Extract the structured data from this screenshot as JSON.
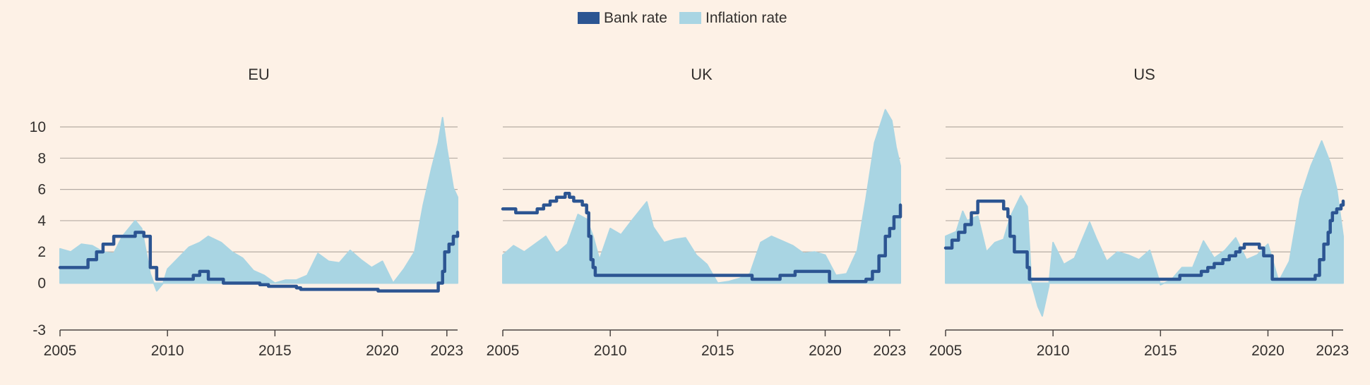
{
  "legend": {
    "items": [
      {
        "label": "Bank rate",
        "color": "#2c5592"
      },
      {
        "label": "Inflation rate",
        "color": "#a9d5e3"
      }
    ]
  },
  "colors": {
    "background": "#fdf1e6",
    "bank": "#2c5592",
    "inflation": "#a9d5e3",
    "grid": "#b5aca4",
    "axis": "#4a4542",
    "text": "#33302e"
  },
  "chart_data": [
    {
      "type": "area",
      "title": "EU",
      "xlim": [
        2005,
        2023.5
      ],
      "ylim": [
        -3,
        11
      ],
      "xticks": [
        2005,
        2010,
        2015,
        2020,
        2023
      ],
      "yticks": [
        -3,
        0,
        2,
        4,
        6,
        8,
        10
      ],
      "series": [
        {
          "name": "Inflation rate",
          "type": "area",
          "points": [
            [
              2005,
              2.2
            ],
            [
              2005.5,
              2.0
            ],
            [
              2006,
              2.5
            ],
            [
              2006.5,
              2.4
            ],
            [
              2007,
              2.0
            ],
            [
              2007.5,
              1.9
            ],
            [
              2007.9,
              3.0
            ],
            [
              2008.5,
              4.0
            ],
            [
              2008.8,
              3.5
            ],
            [
              2009.2,
              0.6
            ],
            [
              2009.5,
              -0.5
            ],
            [
              2009.8,
              0.0
            ],
            [
              2010,
              0.9
            ],
            [
              2010.5,
              1.6
            ],
            [
              2011,
              2.3
            ],
            [
              2011.5,
              2.6
            ],
            [
              2011.9,
              3.0
            ],
            [
              2012.5,
              2.6
            ],
            [
              2013,
              2.0
            ],
            [
              2013.5,
              1.6
            ],
            [
              2014,
              0.8
            ],
            [
              2014.5,
              0.5
            ],
            [
              2015,
              0.0
            ],
            [
              2015.5,
              0.2
            ],
            [
              2016,
              0.2
            ],
            [
              2016.5,
              0.5
            ],
            [
              2017,
              1.9
            ],
            [
              2017.5,
              1.4
            ],
            [
              2018,
              1.3
            ],
            [
              2018.5,
              2.1
            ],
            [
              2019,
              1.5
            ],
            [
              2019.5,
              1.0
            ],
            [
              2020,
              1.4
            ],
            [
              2020.5,
              0.0
            ],
            [
              2021,
              0.9
            ],
            [
              2021.5,
              2.0
            ],
            [
              2021.9,
              5.0
            ],
            [
              2022.3,
              7.4
            ],
            [
              2022.6,
              9.0
            ],
            [
              2022.8,
              10.6
            ],
            [
              2023,
              8.6
            ],
            [
              2023.3,
              6.1
            ],
            [
              2023.5,
              5.5
            ]
          ]
        },
        {
          "name": "Bank rate",
          "type": "step",
          "points": [
            [
              2005,
              1.0
            ],
            [
              2006,
              1.0
            ],
            [
              2006.3,
              1.5
            ],
            [
              2006.7,
              2.0
            ],
            [
              2007,
              2.5
            ],
            [
              2007.5,
              3.0
            ],
            [
              2008.5,
              3.25
            ],
            [
              2008.9,
              3.0
            ],
            [
              2009.2,
              1.0
            ],
            [
              2009.5,
              0.25
            ],
            [
              2011.2,
              0.5
            ],
            [
              2011.5,
              0.75
            ],
            [
              2011.9,
              0.25
            ],
            [
              2012.6,
              0.0
            ],
            [
              2014.3,
              -0.1
            ],
            [
              2014.7,
              -0.2
            ],
            [
              2016,
              -0.3
            ],
            [
              2016.2,
              -0.4
            ],
            [
              2019.8,
              -0.5
            ],
            [
              2022.5,
              -0.5
            ],
            [
              2022.6,
              0.0
            ],
            [
              2022.8,
              0.75
            ],
            [
              2022.9,
              2.0
            ],
            [
              2023.1,
              2.5
            ],
            [
              2023.3,
              3.0
            ],
            [
              2023.5,
              3.25
            ]
          ]
        }
      ]
    },
    {
      "type": "area",
      "title": "UK",
      "xlim": [
        2005,
        2023.5
      ],
      "ylim": [
        -3,
        11
      ],
      "xticks": [
        2005,
        2010,
        2015,
        2020,
        2023
      ],
      "yticks": [
        -3,
        0,
        2,
        4,
        6,
        8,
        10
      ],
      "series": [
        {
          "name": "Inflation rate",
          "type": "area",
          "points": [
            [
              2005,
              1.8
            ],
            [
              2005.5,
              2.4
            ],
            [
              2006,
              2.0
            ],
            [
              2006.5,
              2.5
            ],
            [
              2007,
              3.0
            ],
            [
              2007.5,
              1.9
            ],
            [
              2008,
              2.5
            ],
            [
              2008.5,
              4.4
            ],
            [
              2008.9,
              4.1
            ],
            [
              2009.2,
              3.0
            ],
            [
              2009.5,
              1.5
            ],
            [
              2010,
              3.5
            ],
            [
              2010.5,
              3.1
            ],
            [
              2011,
              4.0
            ],
            [
              2011.7,
              5.2
            ],
            [
              2012,
              3.6
            ],
            [
              2012.5,
              2.6
            ],
            [
              2013,
              2.8
            ],
            [
              2013.5,
              2.9
            ],
            [
              2014,
              1.8
            ],
            [
              2014.5,
              1.2
            ],
            [
              2015,
              0.0
            ],
            [
              2015.5,
              0.1
            ],
            [
              2016,
              0.3
            ],
            [
              2016.5,
              0.6
            ],
            [
              2017,
              2.6
            ],
            [
              2017.5,
              3.0
            ],
            [
              2018,
              2.7
            ],
            [
              2018.5,
              2.4
            ],
            [
              2019,
              1.9
            ],
            [
              2019.5,
              2.0
            ],
            [
              2020,
              1.8
            ],
            [
              2020.5,
              0.5
            ],
            [
              2021,
              0.6
            ],
            [
              2021.5,
              2.1
            ],
            [
              2021.9,
              5.4
            ],
            [
              2022.3,
              9.0
            ],
            [
              2022.8,
              11.1
            ],
            [
              2023.1,
              10.4
            ],
            [
              2023.3,
              8.7
            ],
            [
              2023.5,
              7.5
            ]
          ]
        },
        {
          "name": "Bank rate",
          "type": "step",
          "points": [
            [
              2005,
              4.75
            ],
            [
              2005.6,
              4.5
            ],
            [
              2006.6,
              4.75
            ],
            [
              2006.9,
              5.0
            ],
            [
              2007.2,
              5.25
            ],
            [
              2007.5,
              5.5
            ],
            [
              2007.9,
              5.75
            ],
            [
              2008.1,
              5.5
            ],
            [
              2008.3,
              5.25
            ],
            [
              2008.7,
              5.0
            ],
            [
              2008.9,
              4.5
            ],
            [
              2009,
              3.0
            ],
            [
              2009.1,
              1.5
            ],
            [
              2009.2,
              1.0
            ],
            [
              2009.3,
              0.5
            ],
            [
              2016.6,
              0.25
            ],
            [
              2017.9,
              0.5
            ],
            [
              2018.6,
              0.75
            ],
            [
              2020.2,
              0.1
            ],
            [
              2021.9,
              0.25
            ],
            [
              2022.2,
              0.75
            ],
            [
              2022.5,
              1.75
            ],
            [
              2022.8,
              3.0
            ],
            [
              2023,
              3.5
            ],
            [
              2023.2,
              4.25
            ],
            [
              2023.5,
              5.0
            ]
          ]
        }
      ]
    },
    {
      "type": "area",
      "title": "US",
      "xlim": [
        2005,
        2023.5
      ],
      "ylim": [
        -3,
        11
      ],
      "xticks": [
        2005,
        2010,
        2015,
        2020,
        2023
      ],
      "yticks": [
        -3,
        0,
        2,
        4,
        6,
        8,
        10
      ],
      "series": [
        {
          "name": "Inflation rate",
          "type": "area",
          "points": [
            [
              2005,
              3.0
            ],
            [
              2005.5,
              3.3
            ],
            [
              2005.8,
              4.6
            ],
            [
              2006,
              4.0
            ],
            [
              2006.5,
              4.3
            ],
            [
              2006.9,
              2.0
            ],
            [
              2007.3,
              2.6
            ],
            [
              2007.7,
              2.8
            ],
            [
              2008,
              4.2
            ],
            [
              2008.5,
              5.6
            ],
            [
              2008.8,
              4.9
            ],
            [
              2009,
              0.0
            ],
            [
              2009.3,
              -1.5
            ],
            [
              2009.5,
              -2.1
            ],
            [
              2009.8,
              -0.2
            ],
            [
              2010,
              2.6
            ],
            [
              2010.5,
              1.2
            ],
            [
              2011,
              1.6
            ],
            [
              2011.7,
              3.9
            ],
            [
              2012,
              2.9
            ],
            [
              2012.5,
              1.4
            ],
            [
              2013,
              2.0
            ],
            [
              2013.5,
              1.8
            ],
            [
              2014,
              1.5
            ],
            [
              2014.5,
              2.1
            ],
            [
              2015,
              -0.1
            ],
            [
              2015.5,
              0.2
            ],
            [
              2016,
              1.0
            ],
            [
              2016.5,
              1.0
            ],
            [
              2017,
              2.7
            ],
            [
              2017.5,
              1.6
            ],
            [
              2018,
              2.1
            ],
            [
              2018.5,
              2.9
            ],
            [
              2019,
              1.5
            ],
            [
              2019.5,
              1.8
            ],
            [
              2020,
              2.5
            ],
            [
              2020.5,
              0.1
            ],
            [
              2021,
              1.4
            ],
            [
              2021.5,
              5.4
            ],
            [
              2022,
              7.5
            ],
            [
              2022.5,
              9.1
            ],
            [
              2022.9,
              7.7
            ],
            [
              2023.2,
              6.0
            ],
            [
              2023.5,
              3.0
            ]
          ]
        },
        {
          "name": "Bank rate",
          "type": "step",
          "points": [
            [
              2005,
              2.25
            ],
            [
              2005.3,
              2.75
            ],
            [
              2005.6,
              3.25
            ],
            [
              2005.9,
              3.75
            ],
            [
              2006.2,
              4.5
            ],
            [
              2006.5,
              5.25
            ],
            [
              2007.7,
              4.75
            ],
            [
              2007.9,
              4.25
            ],
            [
              2008,
              3.0
            ],
            [
              2008.2,
              2.0
            ],
            [
              2008.8,
              1.0
            ],
            [
              2008.9,
              0.25
            ],
            [
              2015.9,
              0.5
            ],
            [
              2016.9,
              0.75
            ],
            [
              2017.2,
              1.0
            ],
            [
              2017.5,
              1.25
            ],
            [
              2017.9,
              1.5
            ],
            [
              2018.2,
              1.75
            ],
            [
              2018.5,
              2.0
            ],
            [
              2018.7,
              2.25
            ],
            [
              2018.9,
              2.5
            ],
            [
              2019.6,
              2.25
            ],
            [
              2019.8,
              1.75
            ],
            [
              2020.2,
              0.25
            ],
            [
              2022.2,
              0.5
            ],
            [
              2022.4,
              1.5
            ],
            [
              2022.6,
              2.5
            ],
            [
              2022.8,
              3.25
            ],
            [
              2022.9,
              4.0
            ],
            [
              2023,
              4.5
            ],
            [
              2023.2,
              4.75
            ],
            [
              2023.4,
              5.0
            ],
            [
              2023.5,
              5.25
            ]
          ]
        }
      ]
    }
  ]
}
